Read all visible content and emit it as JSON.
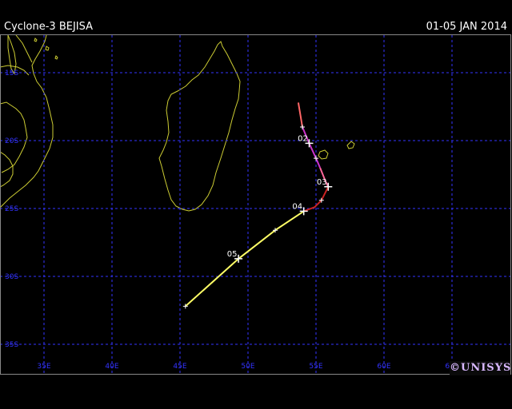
{
  "header": {
    "storm_title": "Cyclone-3 BEJISA",
    "date_range": "01-05 JAN 2014"
  },
  "map": {
    "lon_ticks": [
      "35E",
      "40E",
      "45E",
      "50E",
      "55E",
      "60E",
      "65E"
    ],
    "lat_ticks": [
      "15S",
      "20S",
      "25S",
      "30S",
      "35S"
    ],
    "grid_color": "#3333ff",
    "coast_color": "#cccc33"
  },
  "track": {
    "segments": [
      {
        "color": "#ff6666",
        "points": [
          [
            53.7,
            -17.2
          ],
          [
            54.0,
            -19.0
          ]
        ]
      },
      {
        "color": "#cc33cc",
        "points": [
          [
            54.0,
            -19.0
          ],
          [
            54.5,
            -20.2
          ],
          [
            55.0,
            -21.3
          ],
          [
            55.3,
            -22.0
          ]
        ]
      },
      {
        "color": "#ff6699",
        "points": [
          [
            55.3,
            -22.0
          ],
          [
            55.7,
            -23.0
          ],
          [
            55.9,
            -23.4
          ]
        ]
      },
      {
        "color": "#cc2222",
        "points": [
          [
            55.9,
            -23.4
          ],
          [
            55.4,
            -24.4
          ],
          [
            54.9,
            -24.9
          ],
          [
            54.1,
            -25.2
          ]
        ]
      },
      {
        "color": "#ffff66",
        "points": [
          [
            54.1,
            -25.2
          ],
          [
            52.0,
            -26.6
          ],
          [
            49.3,
            -28.7
          ],
          [
            45.4,
            -32.2
          ]
        ]
      }
    ],
    "six_hour_marks": [
      [
        54.0,
        -19.0
      ],
      [
        54.5,
        -20.2
      ],
      [
        55.0,
        -21.3
      ],
      [
        55.4,
        -24.4
      ],
      [
        52.0,
        -26.6
      ],
      [
        45.4,
        -32.2
      ]
    ],
    "daily_positions": [
      {
        "label": "02",
        "lon": 54.5,
        "lat": -20.2
      },
      {
        "label": "03",
        "lon": 55.9,
        "lat": -23.4
      },
      {
        "label": "04",
        "lon": 54.1,
        "lat": -25.2
      },
      {
        "label": "05",
        "lon": 49.3,
        "lat": -28.7
      }
    ]
  },
  "logo": {
    "text": "©UNISYS"
  }
}
